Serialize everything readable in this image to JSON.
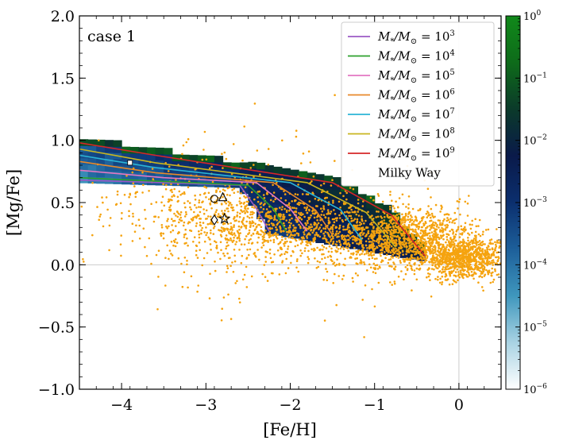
{
  "chart_data": {
    "type": "scatter",
    "annotation": "case 1",
    "xlabel": "[Fe/H]",
    "ylabel": "[Mg/Fe]",
    "xlim": [
      -4.5,
      0.5
    ],
    "ylim": [
      -1.0,
      2.0
    ],
    "x_ticks": [
      -4,
      -3,
      -2,
      -1,
      0
    ],
    "x_tick_labels": [
      "−4",
      "−3",
      "−2",
      "−1",
      "0"
    ],
    "y_ticks": [
      -1.0,
      -0.5,
      0.0,
      0.5,
      1.0,
      1.5,
      2.0
    ],
    "y_tick_labels": [
      "−1.0",
      "−0.5",
      "0.0",
      "0.5",
      "1.0",
      "1.5",
      "2.0"
    ],
    "reference_lines": {
      "x": 0,
      "y": 0
    },
    "colorbar": {
      "scale": "log",
      "range": [
        1e-06,
        1
      ],
      "tick_labels": [
        "10⁶",
        "10⁵",
        "10⁴",
        "10⁳",
        "10⁲",
        "10ⁱ",
        "10⁰"
      ],
      "tick_exponents": [
        "−6",
        "−5",
        "−4",
        "−3",
        "−2",
        "−1",
        "0"
      ],
      "colors": [
        "#ffffff",
        "#a9d3e3",
        "#3f97bd",
        "#1d5f9a",
        "#0b2f6e",
        "#0a1a4a",
        "#0b3a2a",
        "#0e6b1a",
        "#10891a"
      ]
    },
    "legend": {
      "placement": "top-right",
      "entries": [
        {
          "label_base": "M",
          "label_sub": "*",
          "label_mid": "/M",
          "label_sub2": "⊙",
          "label_eq": " = 10",
          "label_exp": "3",
          "color": "#9b59c4"
        },
        {
          "label_base": "M",
          "label_sub": "*",
          "label_mid": "/M",
          "label_sub2": "⊙",
          "label_eq": " = 10",
          "label_exp": "4",
          "color": "#2ca02c"
        },
        {
          "label_base": "M",
          "label_sub": "*",
          "label_mid": "/M",
          "label_sub2": "⊙",
          "label_eq": " = 10",
          "label_exp": "5",
          "color": "#e377c2"
        },
        {
          "label_base": "M",
          "label_sub": "*",
          "label_mid": "/M",
          "label_sub2": "⊙",
          "label_eq": " = 10",
          "label_exp": "6",
          "color": "#e8892a"
        },
        {
          "label_base": "M",
          "label_sub": "*",
          "label_mid": "/M",
          "label_sub2": "⊙",
          "label_eq": " = 10",
          "label_exp": "7",
          "color": "#2bb5d6"
        },
        {
          "label_base": "M",
          "label_sub": "*",
          "label_mid": "/M",
          "label_sub2": "⊙",
          "label_eq": " = 10",
          "label_exp": "8",
          "color": "#c9b51f"
        },
        {
          "label_base": "M",
          "label_sub": "*",
          "label_mid": "/M",
          "label_sub2": "⊙",
          "label_eq": " = 10",
          "label_exp": "9",
          "color": "#d62728"
        }
      ],
      "milky_way_label": "Milky Way"
    },
    "milky_way_color": "#f5a30f",
    "milky_way_clusters": [
      {
        "cx": -1.8,
        "cy": 0.3,
        "sx": 1.0,
        "sy": 0.15,
        "n": 1300
      },
      {
        "cx": -0.6,
        "cy": 0.22,
        "sx": 0.4,
        "sy": 0.12,
        "n": 900
      },
      {
        "cx": 0.05,
        "cy": 0.05,
        "sx": 0.25,
        "sy": 0.08,
        "n": 900
      },
      {
        "cx": -2.9,
        "cy": 0.35,
        "sx": 0.6,
        "sy": 0.25,
        "n": 300
      },
      {
        "cx": -2.0,
        "cy": 0.35,
        "sx": 1.2,
        "sy": 0.4,
        "n": 140
      }
    ],
    "model_tracks": [
      {
        "name_exp": "3",
        "color": "#9b59c4",
        "x": [
          -4.5,
          -3.5,
          -2.6,
          -2.4,
          -2.25
        ],
        "y": [
          0.68,
          0.66,
          0.64,
          0.45,
          0.27
        ]
      },
      {
        "name_exp": "4",
        "color": "#2ca02c",
        "x": [
          -4.5,
          -3.5,
          -2.5,
          -2.2,
          -2.05
        ],
        "y": [
          0.7,
          0.67,
          0.64,
          0.45,
          0.27
        ]
      },
      {
        "name_exp": "5",
        "color": "#e377c2",
        "x": [
          -4.5,
          -3.5,
          -2.4,
          -2.0,
          -1.8
        ],
        "y": [
          0.76,
          0.7,
          0.66,
          0.45,
          0.27
        ]
      },
      {
        "name_exp": "6",
        "color": "#e8892a",
        "x": [
          -4.5,
          -3.6,
          -2.2,
          -1.7,
          -1.5
        ],
        "y": [
          0.83,
          0.74,
          0.66,
          0.44,
          0.24
        ]
      },
      {
        "name_exp": "7",
        "color": "#2bb5d6",
        "x": [
          -4.5,
          -3.6,
          -2.0,
          -1.4,
          -1.15
        ],
        "y": [
          0.88,
          0.78,
          0.66,
          0.44,
          0.2
        ]
      },
      {
        "name_exp": "8",
        "color": "#c9b51f",
        "x": [
          -4.5,
          -3.6,
          -1.8,
          -1.1,
          -0.75
        ],
        "y": [
          0.93,
          0.82,
          0.66,
          0.42,
          0.14
        ]
      },
      {
        "name_exp": "9",
        "color": "#d62728",
        "x": [
          -4.5,
          -3.6,
          -1.5,
          -0.8,
          -0.4
        ],
        "y": [
          0.98,
          0.88,
          0.66,
          0.4,
          0.07
        ]
      }
    ],
    "markers": [
      {
        "shape": "square-filled",
        "x": -3.9,
        "y": 0.82
      },
      {
        "shape": "circle",
        "x": -2.9,
        "y": 0.53
      },
      {
        "shape": "triangle",
        "x": -2.8,
        "y": 0.54
      },
      {
        "shape": "diamond",
        "x": -2.9,
        "y": 0.36
      },
      {
        "shape": "star",
        "x": -2.78,
        "y": 0.37
      }
    ]
  }
}
